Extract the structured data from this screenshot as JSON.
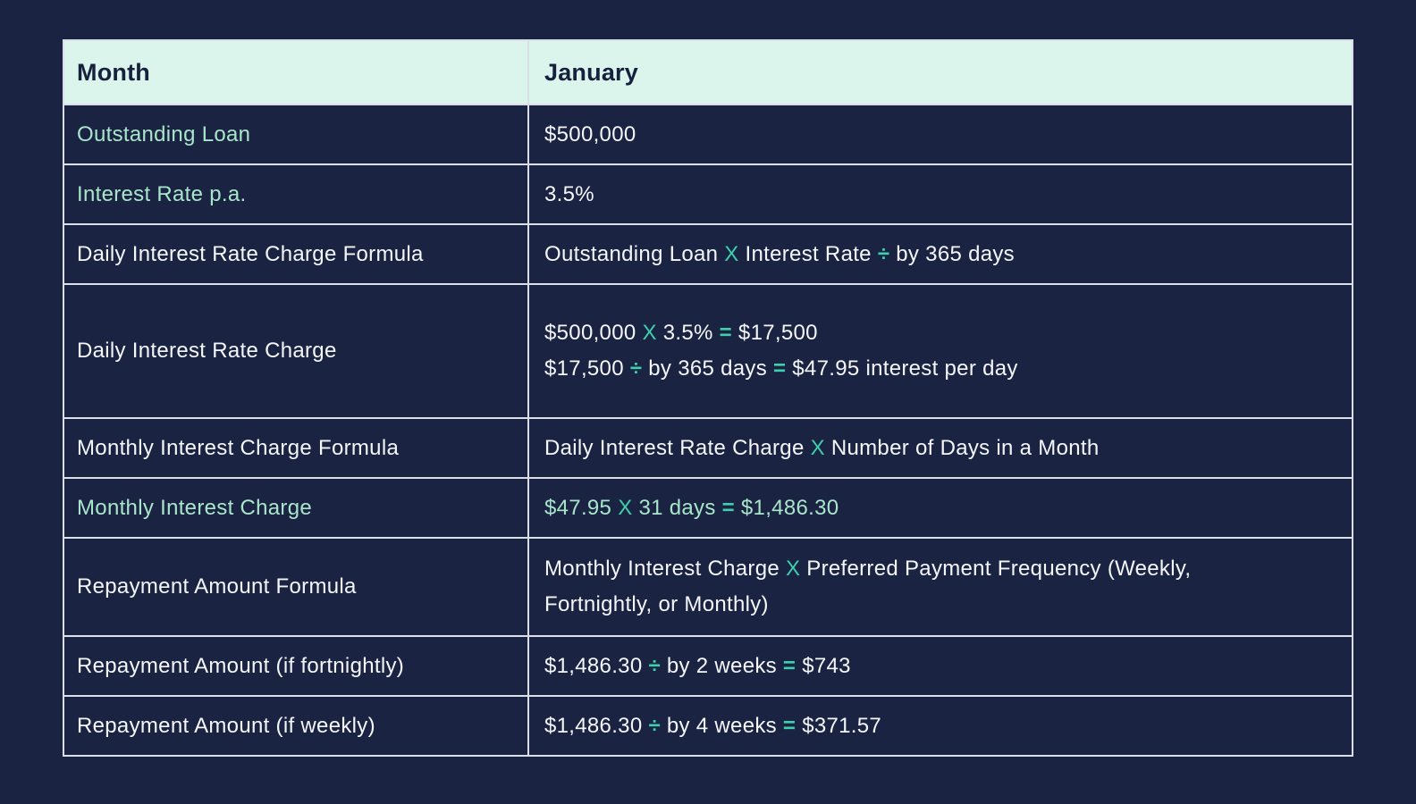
{
  "colors": {
    "page_bg": "#1A2341",
    "cell_bg": "#1A2341",
    "header_bg": "#DBF4EC",
    "header_text": "#16213D",
    "border": "#D9DEE8",
    "white": "#F4F6F9",
    "mint": "#A8E6CB",
    "teal": "#3ECFAC"
  },
  "table": {
    "header": {
      "month_label": "Month",
      "month_value": "January"
    },
    "rows": [
      {
        "label": "Outstanding Loan",
        "label_color": "mint",
        "lines": [
          [
            {
              "t": "$500,000",
              "c": "white"
            }
          ]
        ]
      },
      {
        "label": "Interest Rate p.a.",
        "label_color": "mint",
        "lines": [
          [
            {
              "t": "3.5%",
              "c": "white"
            }
          ]
        ]
      },
      {
        "label": "Daily Interest Rate Charge Formula",
        "label_color": "white",
        "lines": [
          [
            {
              "t": "Outstanding Loan ",
              "c": "white"
            },
            {
              "t": "X",
              "c": "teal"
            },
            {
              "t": " Interest Rate ",
              "c": "white"
            },
            {
              "t": "÷",
              "c": "teal"
            },
            {
              "t": " by 365 days",
              "c": "white"
            }
          ]
        ]
      },
      {
        "label": "Daily Interest Rate Charge",
        "label_color": "white",
        "lines": [
          [
            {
              "t": "$500,000 ",
              "c": "white"
            },
            {
              "t": "X",
              "c": "teal"
            },
            {
              "t": " 3.5% ",
              "c": "white"
            },
            {
              "t": "=",
              "c": "teal"
            },
            {
              "t": " $17,500",
              "c": "white"
            }
          ],
          [
            {
              "t": "$17,500 ",
              "c": "white"
            },
            {
              "t": "÷",
              "c": "teal"
            },
            {
              "t": " by 365 days ",
              "c": "white"
            },
            {
              "t": "=",
              "c": "teal"
            },
            {
              "t": " $47.95 interest per day",
              "c": "white"
            }
          ]
        ]
      },
      {
        "label": "Monthly Interest Charge Formula",
        "label_color": "white",
        "lines": [
          [
            {
              "t": "Daily Interest Rate Charge ",
              "c": "white"
            },
            {
              "t": "X",
              "c": "teal"
            },
            {
              "t": " Number of Days in a Month",
              "c": "white"
            }
          ]
        ]
      },
      {
        "label": "Monthly Interest Charge",
        "label_color": "mint",
        "lines": [
          [
            {
              "t": "$47.95 ",
              "c": "mint"
            },
            {
              "t": "X",
              "c": "teal"
            },
            {
              "t": " 31 days ",
              "c": "mint"
            },
            {
              "t": "=",
              "c": "teal"
            },
            {
              "t": " $1,486.30",
              "c": "mint"
            }
          ]
        ]
      },
      {
        "label": "Repayment Amount Formula",
        "label_color": "white",
        "lines": [
          [
            {
              "t": "Monthly Interest Charge ",
              "c": "white"
            },
            {
              "t": "X",
              "c": "teal"
            },
            {
              "t": " Preferred Payment Frequency (Weekly,",
              "c": "white"
            }
          ],
          [
            {
              "t": "Fortnightly, or Monthly)",
              "c": "white"
            }
          ]
        ]
      },
      {
        "label": "Repayment Amount (if fortnightly)",
        "label_color": "white",
        "lines": [
          [
            {
              "t": "$1,486.30 ",
              "c": "white"
            },
            {
              "t": "÷",
              "c": "teal"
            },
            {
              "t": " by 2 weeks ",
              "c": "white"
            },
            {
              "t": "=",
              "c": "teal"
            },
            {
              "t": " $743",
              "c": "white"
            }
          ]
        ]
      },
      {
        "label": "Repayment Amount (if weekly)",
        "label_color": "white",
        "lines": [
          [
            {
              "t": "$1,486.30 ",
              "c": "white"
            },
            {
              "t": "÷",
              "c": "teal"
            },
            {
              "t": " by 4 weeks ",
              "c": "white"
            },
            {
              "t": "=",
              "c": "teal"
            },
            {
              "t": " $371.57",
              "c": "white"
            }
          ]
        ]
      }
    ]
  },
  "chart_data": {
    "type": "table",
    "columns": [
      "Month",
      "January"
    ],
    "rows": [
      [
        "Outstanding Loan",
        "$500,000"
      ],
      [
        "Interest Rate p.a.",
        "3.5%"
      ],
      [
        "Daily Interest Rate Charge Formula",
        "Outstanding Loan X Interest Rate ÷ by 365 days"
      ],
      [
        "Daily Interest Rate Charge",
        "$500,000 X 3.5% = $17,500 ; $17,500 ÷ by 365 days = $47.95 interest per day"
      ],
      [
        "Monthly Interest Charge Formula",
        "Daily Interest Rate Charge X Number of Days in a Month"
      ],
      [
        "Monthly Interest Charge",
        "$47.95 X 31 days = $1,486.30"
      ],
      [
        "Repayment Amount Formula",
        "Monthly Interest Charge X Preferred Payment Frequency (Weekly, Fortnightly, or Monthly)"
      ],
      [
        "Repayment Amount (if fortnightly)",
        "$1,486.30 ÷ by 2 weeks = $743"
      ],
      [
        "Repayment Amount (if weekly)",
        "$1,486.30 ÷ by 4 weeks = $371.57"
      ]
    ]
  }
}
